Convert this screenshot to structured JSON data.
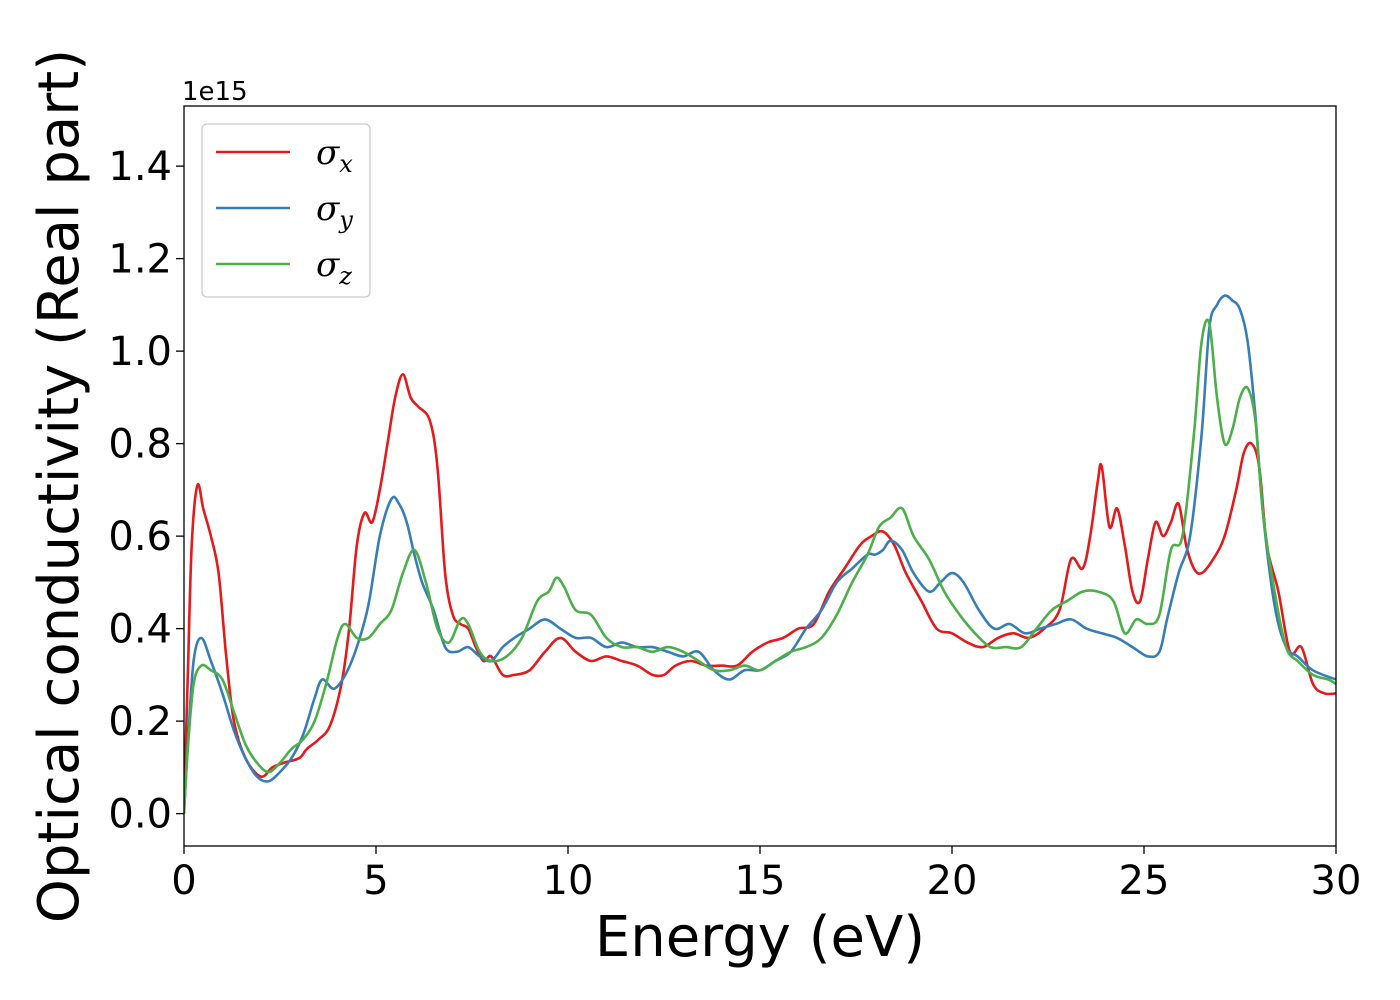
{
  "chart_data": {
    "type": "line",
    "xlabel": "Energy (eV)",
    "ylabel": "Optical conductivity (Real part)",
    "y_offset_text": "1e15",
    "xlim": [
      0,
      30
    ],
    "ylim": [
      -0.07,
      1.53
    ],
    "xticks": [
      0,
      5,
      10,
      15,
      20,
      25,
      30
    ],
    "xtick_labels": [
      "0",
      "5",
      "10",
      "15",
      "20",
      "25",
      "30"
    ],
    "yticks": [
      0.0,
      0.2,
      0.4,
      0.6,
      0.8,
      1.0,
      1.2,
      1.4
    ],
    "ytick_labels": [
      "0.0",
      "0.2",
      "0.4",
      "0.6",
      "0.8",
      "1.0",
      "1.2",
      "1.4"
    ],
    "grid": false,
    "legend_position": "top-left",
    "series": [
      {
        "name": "σ",
        "subscript": "x",
        "color": "#e41a1c",
        "x": [
          0,
          0.1,
          0.2,
          0.35,
          0.5,
          0.7,
          0.9,
          1.1,
          1.3,
          1.6,
          2.0,
          2.3,
          2.6,
          3.0,
          3.2,
          3.5,
          3.8,
          4.1,
          4.3,
          4.5,
          4.7,
          4.9,
          5.1,
          5.3,
          5.5,
          5.7,
          5.9,
          6.1,
          6.4,
          6.6,
          6.8,
          7.0,
          7.2,
          7.4,
          7.6,
          7.8,
          8.0,
          8.3,
          8.6,
          9.0,
          9.4,
          9.8,
          10.2,
          10.6,
          11.0,
          11.4,
          11.8,
          12.2,
          12.5,
          12.8,
          13.2,
          13.6,
          14.0,
          14.4,
          14.8,
          15.2,
          15.6,
          16.0,
          16.4,
          16.8,
          17.2,
          17.6,
          17.9,
          18.2,
          18.5,
          18.8,
          19.2,
          19.6,
          20.0,
          20.4,
          20.8,
          21.2,
          21.6,
          22.0,
          22.4,
          22.8,
          23.1,
          23.4,
          23.6,
          23.8,
          23.9,
          24.1,
          24.3,
          24.5,
          24.7,
          24.9,
          25.1,
          25.3,
          25.5,
          25.7,
          25.9,
          26.1,
          26.3,
          26.5,
          26.8,
          27.1,
          27.4,
          27.6,
          27.8,
          28.0,
          28.2,
          28.5,
          28.8,
          29.1,
          29.4,
          29.7,
          30.0
        ],
        "y": [
          0.02,
          0.3,
          0.58,
          0.71,
          0.66,
          0.6,
          0.52,
          0.34,
          0.2,
          0.12,
          0.08,
          0.1,
          0.11,
          0.12,
          0.14,
          0.16,
          0.19,
          0.28,
          0.4,
          0.58,
          0.65,
          0.63,
          0.7,
          0.8,
          0.9,
          0.95,
          0.9,
          0.88,
          0.85,
          0.75,
          0.52,
          0.43,
          0.41,
          0.4,
          0.36,
          0.33,
          0.34,
          0.3,
          0.3,
          0.31,
          0.35,
          0.38,
          0.35,
          0.33,
          0.34,
          0.33,
          0.32,
          0.3,
          0.3,
          0.32,
          0.33,
          0.32,
          0.32,
          0.32,
          0.35,
          0.37,
          0.38,
          0.4,
          0.41,
          0.48,
          0.53,
          0.58,
          0.6,
          0.61,
          0.58,
          0.52,
          0.46,
          0.4,
          0.39,
          0.37,
          0.36,
          0.38,
          0.39,
          0.38,
          0.4,
          0.44,
          0.55,
          0.53,
          0.6,
          0.72,
          0.75,
          0.62,
          0.66,
          0.58,
          0.48,
          0.46,
          0.55,
          0.63,
          0.6,
          0.63,
          0.67,
          0.58,
          0.53,
          0.52,
          0.55,
          0.6,
          0.7,
          0.78,
          0.8,
          0.75,
          0.58,
          0.48,
          0.35,
          0.36,
          0.28,
          0.26,
          0.26
        ]
      },
      {
        "name": "σ",
        "subscript": "y",
        "color": "#377eb8",
        "x": [
          0,
          0.1,
          0.25,
          0.45,
          0.7,
          1.0,
          1.3,
          1.6,
          1.9,
          2.2,
          2.5,
          2.8,
          3.1,
          3.4,
          3.6,
          3.9,
          4.2,
          4.5,
          4.8,
          5.1,
          5.4,
          5.6,
          5.8,
          6.0,
          6.2,
          6.5,
          6.8,
          7.1,
          7.4,
          7.7,
          8.0,
          8.3,
          8.6,
          9.0,
          9.4,
          9.8,
          10.2,
          10.6,
          11.0,
          11.4,
          11.8,
          12.2,
          12.6,
          13.0,
          13.4,
          13.8,
          14.2,
          14.6,
          15.0,
          15.4,
          15.8,
          16.2,
          16.6,
          17.0,
          17.4,
          17.8,
          18.0,
          18.2,
          18.4,
          18.7,
          19.0,
          19.4,
          19.7,
          20.0,
          20.3,
          20.7,
          21.1,
          21.5,
          21.9,
          22.3,
          22.7,
          23.1,
          23.5,
          23.9,
          24.3,
          24.7,
          25.1,
          25.4,
          25.6,
          25.9,
          26.2,
          26.5,
          26.7,
          26.9,
          27.1,
          27.3,
          27.5,
          27.7,
          27.9,
          28.1,
          28.4,
          28.7,
          29.0,
          29.4,
          30.0
        ],
        "y": [
          0.0,
          0.15,
          0.33,
          0.38,
          0.33,
          0.26,
          0.18,
          0.12,
          0.08,
          0.07,
          0.09,
          0.12,
          0.17,
          0.25,
          0.29,
          0.27,
          0.3,
          0.36,
          0.45,
          0.6,
          0.68,
          0.67,
          0.63,
          0.56,
          0.5,
          0.44,
          0.36,
          0.35,
          0.36,
          0.34,
          0.33,
          0.36,
          0.38,
          0.4,
          0.42,
          0.4,
          0.38,
          0.38,
          0.36,
          0.37,
          0.36,
          0.36,
          0.35,
          0.34,
          0.35,
          0.31,
          0.29,
          0.31,
          0.31,
          0.33,
          0.35,
          0.4,
          0.44,
          0.5,
          0.53,
          0.56,
          0.56,
          0.57,
          0.59,
          0.57,
          0.52,
          0.48,
          0.5,
          0.52,
          0.5,
          0.44,
          0.4,
          0.41,
          0.39,
          0.4,
          0.41,
          0.42,
          0.4,
          0.39,
          0.38,
          0.36,
          0.34,
          0.35,
          0.42,
          0.52,
          0.6,
          0.82,
          1.05,
          1.1,
          1.12,
          1.11,
          1.09,
          1.02,
          0.86,
          0.65,
          0.45,
          0.36,
          0.34,
          0.31,
          0.29
        ]
      },
      {
        "name": "σ",
        "subscript": "z",
        "color": "#4daf4a",
        "x": [
          0,
          0.1,
          0.25,
          0.45,
          0.7,
          1.0,
          1.3,
          1.6,
          1.9,
          2.2,
          2.5,
          2.8,
          3.1,
          3.4,
          3.7,
          4.0,
          4.2,
          4.5,
          4.8,
          5.1,
          5.4,
          5.7,
          6.0,
          6.3,
          6.6,
          6.9,
          7.2,
          7.4,
          7.7,
          8.0,
          8.4,
          8.8,
          9.2,
          9.5,
          9.7,
          9.9,
          10.2,
          10.6,
          11.0,
          11.4,
          11.8,
          12.2,
          12.6,
          13.0,
          13.4,
          13.8,
          14.2,
          14.6,
          15.0,
          15.4,
          15.8,
          16.2,
          16.6,
          17.0,
          17.4,
          17.8,
          18.1,
          18.4,
          18.7,
          19.0,
          19.4,
          19.8,
          20.2,
          20.6,
          21.0,
          21.4,
          21.8,
          22.2,
          22.6,
          23.0,
          23.4,
          23.8,
          24.2,
          24.5,
          24.8,
          25.1,
          25.4,
          25.7,
          26.0,
          26.3,
          26.5,
          26.7,
          26.9,
          27.1,
          27.3,
          27.5,
          27.7,
          27.9,
          28.1,
          28.4,
          28.7,
          29.0,
          29.4,
          29.8,
          30.0
        ],
        "y": [
          0.0,
          0.14,
          0.28,
          0.32,
          0.31,
          0.29,
          0.22,
          0.15,
          0.11,
          0.09,
          0.11,
          0.14,
          0.16,
          0.2,
          0.28,
          0.38,
          0.41,
          0.38,
          0.38,
          0.41,
          0.44,
          0.52,
          0.57,
          0.5,
          0.4,
          0.37,
          0.42,
          0.41,
          0.35,
          0.33,
          0.34,
          0.38,
          0.46,
          0.48,
          0.51,
          0.49,
          0.44,
          0.43,
          0.38,
          0.36,
          0.36,
          0.35,
          0.36,
          0.35,
          0.33,
          0.31,
          0.31,
          0.32,
          0.31,
          0.33,
          0.35,
          0.36,
          0.38,
          0.43,
          0.5,
          0.56,
          0.62,
          0.64,
          0.66,
          0.6,
          0.55,
          0.48,
          0.43,
          0.39,
          0.36,
          0.36,
          0.36,
          0.4,
          0.44,
          0.46,
          0.48,
          0.48,
          0.46,
          0.39,
          0.42,
          0.41,
          0.43,
          0.57,
          0.6,
          0.82,
          1.02,
          1.06,
          0.9,
          0.8,
          0.83,
          0.9,
          0.92,
          0.85,
          0.65,
          0.48,
          0.36,
          0.33,
          0.3,
          0.29,
          0.28
        ]
      }
    ]
  }
}
